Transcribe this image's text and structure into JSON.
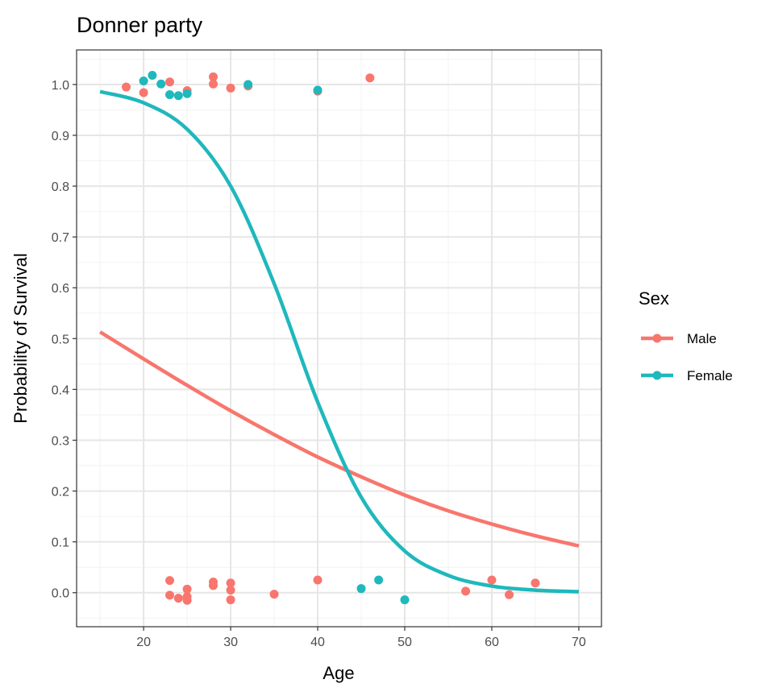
{
  "chart_data": {
    "type": "scatter",
    "title": "Donner party",
    "xlabel": "Age",
    "ylabel": "Probability of Survival",
    "xlim": [
      12.3,
      72.6
    ],
    "ylim": [
      -0.067,
      1.068
    ],
    "xticks": [
      20,
      30,
      40,
      50,
      60,
      70
    ],
    "yticks": [
      0.0,
      0.1,
      0.2,
      0.3,
      0.4,
      0.5,
      0.6,
      0.7,
      0.8,
      0.9,
      1.0
    ],
    "ytick_labels": [
      "0.0",
      "0.1",
      "0.2",
      "0.3",
      "0.4",
      "0.5",
      "0.6",
      "0.7",
      "0.8",
      "0.9",
      "1.0"
    ],
    "grid": true,
    "legend": {
      "title": "Sex",
      "placement": "right"
    },
    "series": [
      {
        "name": "Male",
        "color": "#F8766D",
        "points": [
          [
            18,
            0.995
          ],
          [
            20,
            0.984
          ],
          [
            23,
            1.005
          ],
          [
            25,
            0.988
          ],
          [
            28,
            1.015
          ],
          [
            28,
            1.001
          ],
          [
            30,
            0.993
          ],
          [
            32,
            0.997
          ],
          [
            40,
            0.987
          ],
          [
            46,
            1.013
          ],
          [
            23,
            0.024
          ],
          [
            23,
            -0.005
          ],
          [
            24,
            -0.011
          ],
          [
            25,
            0.007
          ],
          [
            25,
            -0.008
          ],
          [
            25,
            -0.015
          ],
          [
            28,
            0.021
          ],
          [
            28,
            0.014
          ],
          [
            30,
            0.019
          ],
          [
            30,
            0.005
          ],
          [
            30,
            -0.014
          ],
          [
            35,
            -0.003
          ],
          [
            40,
            0.025
          ],
          [
            57,
            0.003
          ],
          [
            60,
            0.025
          ],
          [
            62,
            -0.004
          ],
          [
            65,
            0.019
          ]
        ],
        "curve": {
          "x": [
            15,
            20,
            25,
            30,
            35,
            40,
            45,
            50,
            55,
            60,
            65,
            70
          ],
          "y": [
            0.513,
            0.46,
            0.408,
            0.358,
            0.311,
            0.267,
            0.228,
            0.192,
            0.161,
            0.135,
            0.112,
            0.092
          ]
        }
      },
      {
        "name": "Female",
        "color": "#1FB8BC",
        "points": [
          [
            20,
            1.007
          ],
          [
            21,
            1.018
          ],
          [
            22,
            1.001
          ],
          [
            23,
            0.98
          ],
          [
            24,
            0.978
          ],
          [
            25,
            0.982
          ],
          [
            32,
            1.0
          ],
          [
            40,
            0.989
          ],
          [
            45,
            0.008
          ],
          [
            47,
            0.025
          ],
          [
            50,
            -0.014
          ]
        ],
        "curve": {
          "x": [
            15,
            20,
            25,
            30,
            35,
            40,
            45,
            50,
            55,
            60,
            65,
            70
          ],
          "y": [
            0.986,
            0.964,
            0.912,
            0.8,
            0.608,
            0.375,
            0.188,
            0.082,
            0.034,
            0.013,
            0.005,
            0.002
          ]
        }
      }
    ]
  }
}
